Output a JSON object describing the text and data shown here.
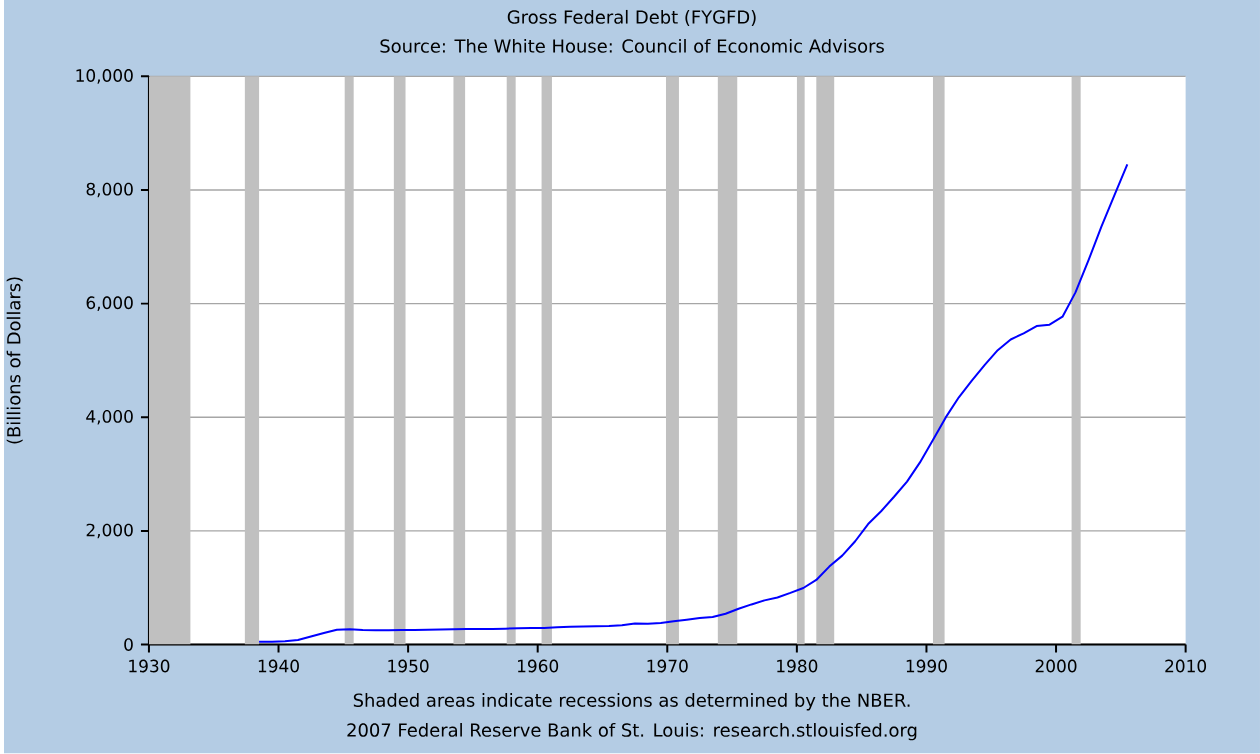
{
  "chart_data": {
    "type": "line",
    "title": "Gross Federal Debt (FYGFD)",
    "subtitle": "Source: The White House: Council of Economic Advisors",
    "ylabel": "(Billions of Dollars)",
    "x": [
      1938.5,
      1939.5,
      1940.5,
      1941.5,
      1942.5,
      1943.5,
      1944.5,
      1945.5,
      1946.5,
      1947.5,
      1948.5,
      1949.5,
      1950.5,
      1951.5,
      1952.5,
      1953.5,
      1954.5,
      1955.5,
      1956.5,
      1957.5,
      1958.5,
      1959.5,
      1960.5,
      1961.5,
      1962.5,
      1963.5,
      1964.5,
      1965.5,
      1966.5,
      1967.5,
      1968.5,
      1969.5,
      1970.5,
      1971.5,
      1972.5,
      1973.5,
      1974.5,
      1975.5,
      1976.5,
      1977.5,
      1978.5,
      1979.5,
      1980.5,
      1981.5,
      1982.5,
      1983.5,
      1984.5,
      1985.5,
      1986.5,
      1987.5,
      1988.5,
      1989.5,
      1990.5,
      1991.5,
      1992.5,
      1993.5,
      1994.5,
      1995.5,
      1996.5,
      1997.5,
      1998.5,
      1999.5,
      2000.5,
      2001.5,
      2002.5,
      2003.5,
      2004.5,
      2005.5
    ],
    "series": [
      {
        "color": "#0000ff",
        "values": [
          48,
          51,
          58,
          79,
          143,
          204,
          260,
          271,
          257,
          252,
          253,
          257,
          255,
          259,
          266,
          271,
          274,
          273,
          272,
          280,
          287,
          291,
          293,
          303,
          311,
          317,
          322,
          328,
          340,
          369,
          366,
          381,
          408,
          436,
          466,
          484,
          542,
          629,
          706,
          777,
          829,
          909,
          995,
          1137,
          1372,
          1565,
          1818,
          2121,
          2346,
          2601,
          2868,
          3206,
          3598,
          4002,
          4351,
          4643,
          4921,
          5181,
          5369,
          5478,
          5606,
          5629,
          5770,
          6198,
          6760,
          7355,
          7905,
          8451
        ]
      }
    ],
    "xlim": [
      1930,
      2010
    ],
    "ylim": [
      0,
      10000
    ],
    "xticks": [
      1930,
      1940,
      1950,
      1960,
      1970,
      1980,
      1990,
      2000,
      2010
    ],
    "yticks": [
      0,
      {
        "value": 2000,
        "label": "2,000"
      },
      {
        "value": 4000,
        "label": "4,000"
      },
      {
        "value": 6000,
        "label": "6,000"
      },
      {
        "value": 8000,
        "label": "8,000"
      },
      {
        "value": 10000,
        "label": "10,000"
      }
    ],
    "grid": "y",
    "bands": [
      {
        "axis": "x",
        "from": 1930,
        "to": 1933.2,
        "color": "#c0c0c0"
      },
      {
        "axis": "x",
        "from": 1937.4,
        "to": 1938.5,
        "color": "#c0c0c0"
      },
      {
        "axis": "x",
        "from": 1945.1,
        "to": 1945.8,
        "color": "#c0c0c0"
      },
      {
        "axis": "x",
        "from": 1948.9,
        "to": 1949.8,
        "color": "#c0c0c0"
      },
      {
        "axis": "x",
        "from": 1953.5,
        "to": 1954.4,
        "color": "#c0c0c0"
      },
      {
        "axis": "x",
        "from": 1957.6,
        "to": 1958.3,
        "color": "#c0c0c0"
      },
      {
        "axis": "x",
        "from": 1960.3,
        "to": 1961.1,
        "color": "#c0c0c0"
      },
      {
        "axis": "x",
        "from": 1969.9,
        "to": 1970.9,
        "color": "#c0c0c0"
      },
      {
        "axis": "x",
        "from": 1973.9,
        "to": 1975.4,
        "color": "#c0c0c0"
      },
      {
        "axis": "x",
        "from": 1980.0,
        "to": 1980.6,
        "color": "#c0c0c0"
      },
      {
        "axis": "x",
        "from": 1981.5,
        "to": 1982.9,
        "color": "#c0c0c0"
      },
      {
        "axis": "x",
        "from": 1990.5,
        "to": 1991.4,
        "color": "#c0c0c0"
      },
      {
        "axis": "x",
        "from": 2001.2,
        "to": 2001.9,
        "color": "#c0c0c0"
      }
    ],
    "annotations": [
      "Shaded areas indicate recessions as determined by the NBER.",
      "2007 Federal Reserve Bank of St. Louis: research.stlouisfed.org"
    ]
  }
}
